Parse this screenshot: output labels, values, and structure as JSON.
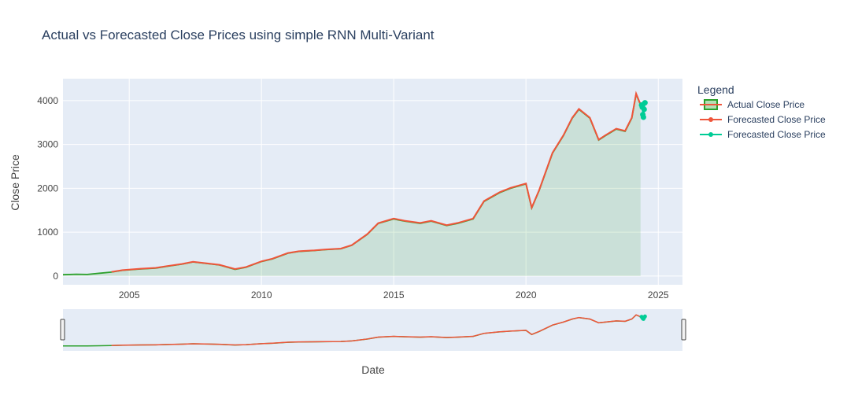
{
  "chart_data": {
    "type": "line",
    "title": "Actual vs Forecasted Close Prices using simple RNN Multi-Variant",
    "xlabel": "Date",
    "ylabel": "Close Price",
    "xlim": [
      "2002-07-01",
      "2025-12-01"
    ],
    "ylim": [
      -200,
      4500
    ],
    "x_ticks": [
      "2005",
      "2010",
      "2015",
      "2020",
      "2025"
    ],
    "y_ticks": [
      0,
      1000,
      2000,
      3000,
      4000
    ],
    "grid": true,
    "legend": {
      "title": "Legend",
      "position": "right"
    },
    "rangeslider": true,
    "series": [
      {
        "name": "Actual Close Price",
        "color": "#2ca02c",
        "fill": "tozeroy",
        "x": [
          "2002-07-01",
          "2003-01-01",
          "2003-06-01",
          "2004-05-01",
          "2004-10-01",
          "2005-06-01",
          "2006-01-01",
          "2006-06-01",
          "2007-01-01",
          "2007-06-01",
          "2008-01-01",
          "2008-06-01",
          "2009-01-01",
          "2009-06-01",
          "2010-01-01",
          "2010-06-01",
          "2011-01-01",
          "2011-06-01",
          "2012-01-01",
          "2012-06-01",
          "2013-01-01",
          "2013-06-01",
          "2014-01-01",
          "2014-06-01",
          "2015-01-01",
          "2015-06-01",
          "2016-01-01",
          "2016-06-01",
          "2017-01-01",
          "2017-06-01",
          "2018-01-01",
          "2018-06-01",
          "2019-01-01",
          "2019-06-01",
          "2020-01-01",
          "2020-03-20",
          "2020-07-01",
          "2021-01-01",
          "2021-06-01",
          "2021-10-01",
          "2022-01-01",
          "2022-06-01",
          "2022-10-01",
          "2023-01-01",
          "2023-06-01",
          "2023-10-01",
          "2024-01-01",
          "2024-03-01",
          "2024-05-01"
        ],
        "y": [
          30,
          40,
          35,
          90,
          130,
          160,
          180,
          220,
          270,
          320,
          280,
          250,
          150,
          200,
          330,
          390,
          520,
          560,
          580,
          600,
          620,
          700,
          950,
          1200,
          1300,
          1250,
          1200,
          1250,
          1150,
          1200,
          1300,
          1700,
          1900,
          2000,
          2100,
          1550,
          1950,
          2800,
          3200,
          3600,
          3800,
          3600,
          3100,
          3200,
          3350,
          3300,
          3600,
          4150,
          3900
        ],
        "values_note_removed": ""
      },
      {
        "name": "Forecasted Close Price",
        "color": "#ef553b",
        "x": [
          "2004-05-01",
          "2004-10-01",
          "2005-06-01",
          "2006-01-01",
          "2006-06-01",
          "2007-01-01",
          "2007-06-01",
          "2008-01-01",
          "2008-06-01",
          "2009-01-01",
          "2009-06-01",
          "2010-01-01",
          "2010-06-01",
          "2011-01-01",
          "2011-06-01",
          "2012-01-01",
          "2012-06-01",
          "2013-01-01",
          "2013-06-01",
          "2014-01-01",
          "2014-06-01",
          "2015-01-01",
          "2015-06-01",
          "2016-01-01",
          "2016-06-01",
          "2017-01-01",
          "2017-06-01",
          "2018-01-01",
          "2018-06-01",
          "2019-01-01",
          "2019-06-01",
          "2020-01-01",
          "2020-03-20",
          "2020-07-01",
          "2021-01-01",
          "2021-06-01",
          "2021-10-01",
          "2022-01-01",
          "2022-06-01",
          "2022-10-01",
          "2023-01-01",
          "2023-06-01",
          "2023-10-01",
          "2024-01-01",
          "2024-03-01",
          "2024-05-01"
        ],
        "y": [
          95,
          135,
          165,
          185,
          225,
          275,
          325,
          285,
          255,
          160,
          205,
          335,
          395,
          525,
          565,
          585,
          605,
          625,
          705,
          955,
          1205,
          1310,
          1260,
          1210,
          1260,
          1160,
          1210,
          1310,
          1710,
          1910,
          2010,
          2110,
          1560,
          1960,
          2810,
          3210,
          3610,
          3810,
          3610,
          3110,
          3210,
          3360,
          3310,
          3610,
          4160,
          3910
        ]
      },
      {
        "name": "Forecasted Close Price",
        "color": "#00cc96",
        "x": [
          "2024-05-15",
          "2024-05-25",
          "2024-06-01",
          "2024-06-10",
          "2024-06-20",
          "2024-07-01"
        ],
        "y": [
          3900,
          3850,
          3680,
          3620,
          3800,
          3950
        ]
      }
    ]
  }
}
